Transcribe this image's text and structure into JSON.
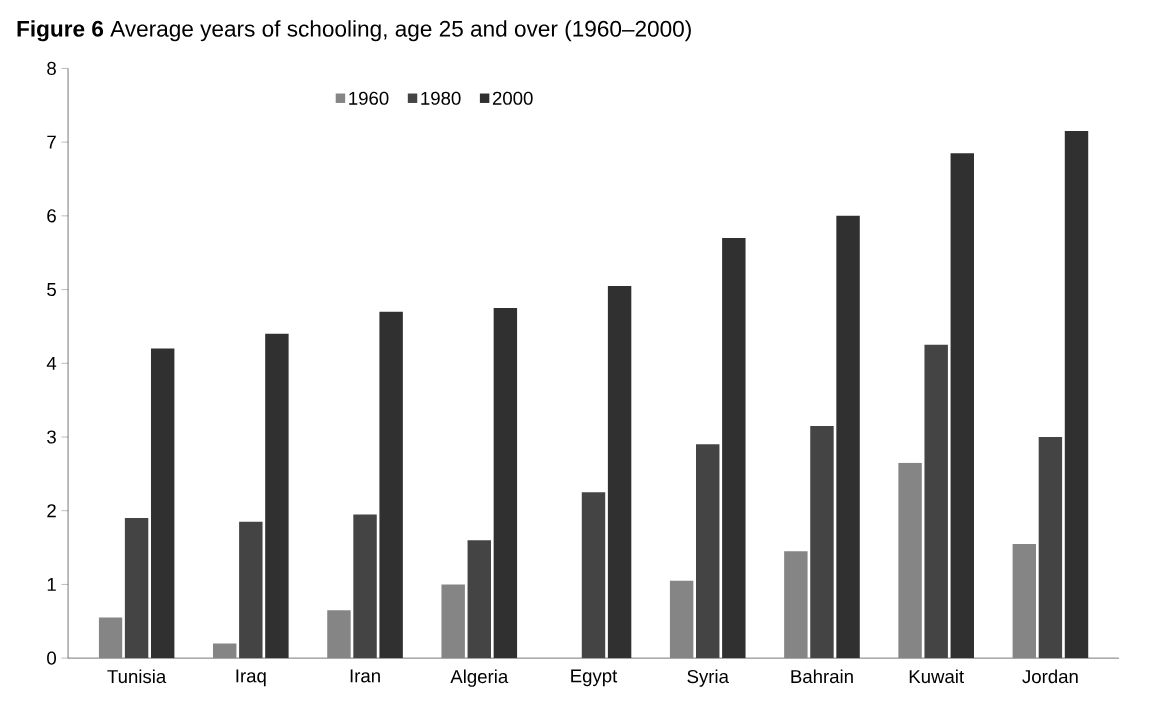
{
  "chart_data": {
    "type": "bar",
    "title": "**Figure 6** Average years of schooling, age 25 and over (1960–2000)",
    "categories": [
      "Tunisia",
      "Iraq",
      "Iran",
      "Algeria",
      "Egypt",
      "Syria",
      "Bahrain",
      "Kuwait",
      "Jordan"
    ],
    "series": [
      {
        "name": "1960",
        "color": "#858585",
        "values": [
          0.55,
          0.2,
          0.65,
          1.0,
          null,
          1.05,
          1.45,
          2.65,
          1.55
        ]
      },
      {
        "name": "1980",
        "color": "#444444",
        "values": [
          1.9,
          1.85,
          1.95,
          1.6,
          2.25,
          2.9,
          3.15,
          4.25,
          3.0
        ]
      },
      {
        "name": "2000",
        "color": "#303030",
        "values": [
          4.2,
          4.4,
          4.7,
          4.75,
          5.05,
          5.7,
          6.0,
          6.85,
          7.15
        ]
      }
    ],
    "ylim": [
      0,
      8
    ],
    "yticks": [
      0,
      1,
      2,
      3,
      4,
      5,
      6,
      7,
      8
    ],
    "grid": false,
    "legend": "top"
  }
}
